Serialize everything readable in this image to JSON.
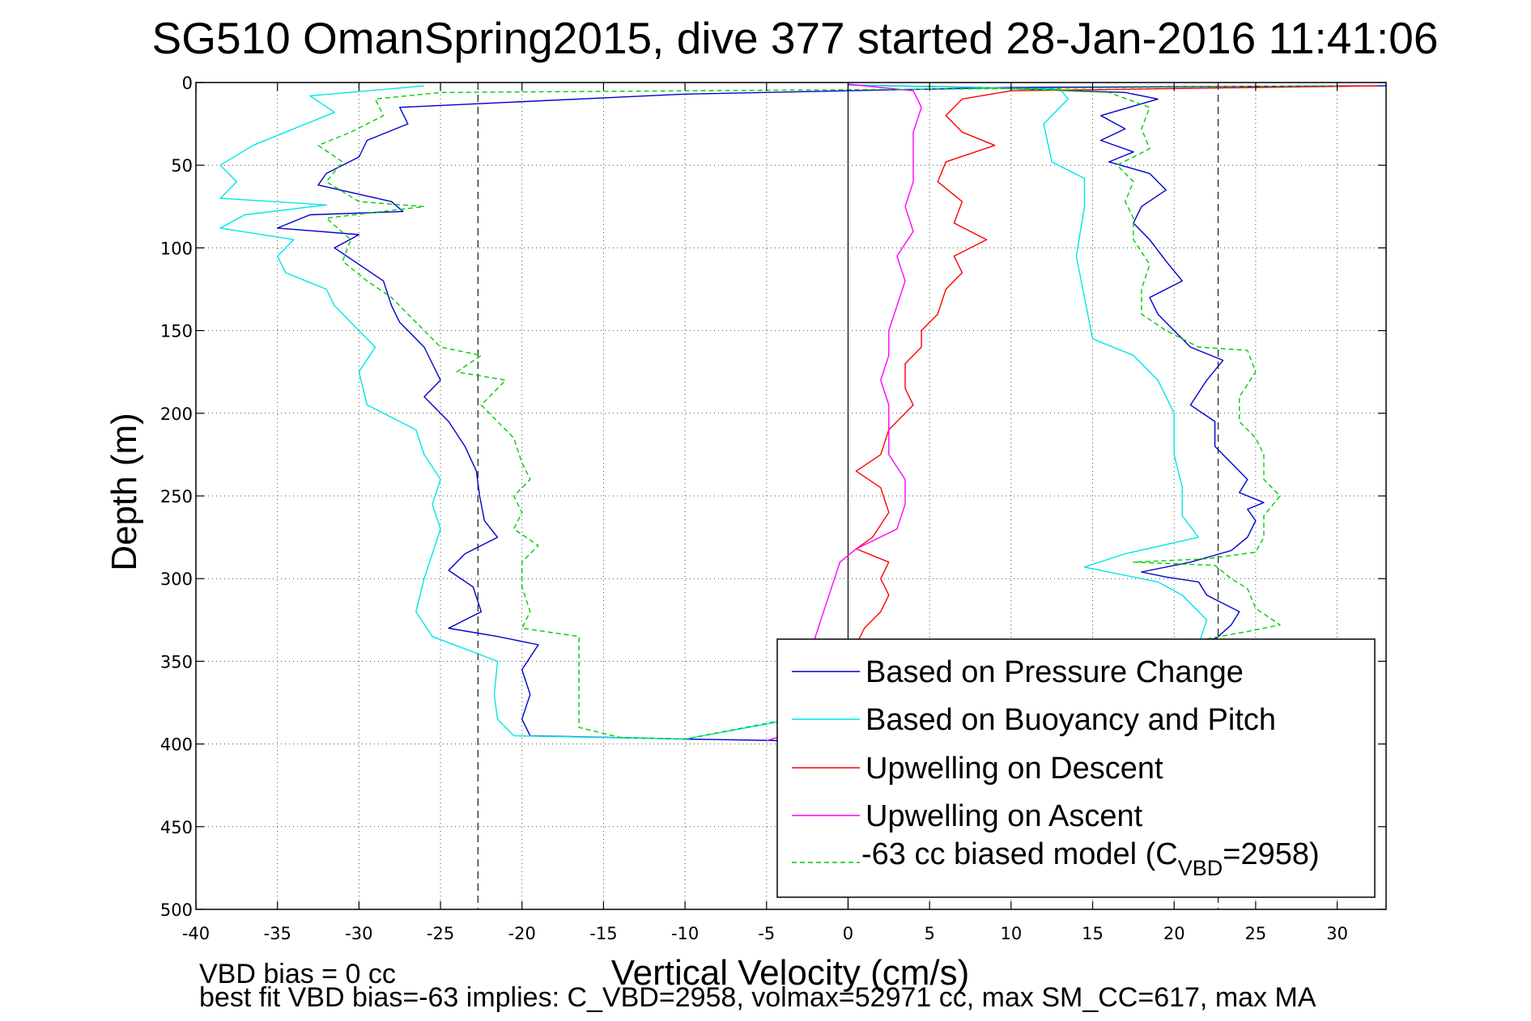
{
  "chart_data": {
    "type": "line",
    "title": "SG510 OmanSpring2015, dive 377 started 28-Jan-2016 11:41:06",
    "xlabel": "Vertical Velocity (cm/s)",
    "ylabel": "Depth (m)",
    "xlim": [
      -40,
      33
    ],
    "ylim": [
      0,
      500
    ],
    "y_reversed": true,
    "grid": true,
    "x_ticks": [
      "-40",
      "-35",
      "-30",
      "-25",
      "-20",
      "-15",
      "-10",
      "-5",
      "0",
      "5",
      "10",
      "15",
      "20",
      "25",
      "30"
    ],
    "y_ticks": [
      "0",
      "50",
      "100",
      "150",
      "200",
      "250",
      "300",
      "350",
      "400",
      "450",
      "500"
    ],
    "reference_lines": {
      "vertical_solid": [
        0
      ],
      "vertical_dashed": [
        -22.7,
        22.7
      ]
    },
    "legend_position": "lower-right",
    "series": [
      {
        "name": "Based on Pressure Change",
        "color": "#0000cc",
        "style": "solid",
        "points": [
          [
            33,
            2
          ],
          [
            10,
            3
          ],
          [
            -10,
            7
          ],
          [
            -27.5,
            15
          ],
          [
            -27,
            25
          ],
          [
            -29.5,
            35
          ],
          [
            -30,
            45
          ],
          [
            -32,
            55
          ],
          [
            -32.5,
            62
          ],
          [
            -28,
            72
          ],
          [
            -27.3,
            78
          ],
          [
            -33,
            80
          ],
          [
            -35,
            88
          ],
          [
            -30,
            92
          ],
          [
            -31.5,
            100
          ],
          [
            -30,
            110
          ],
          [
            -28.5,
            120
          ],
          [
            -28,
            135
          ],
          [
            -27.5,
            145
          ],
          [
            -26,
            160
          ],
          [
            -25.5,
            170
          ],
          [
            -25,
            180
          ],
          [
            -26,
            190
          ],
          [
            -24.5,
            205
          ],
          [
            -23.5,
            220
          ],
          [
            -22.8,
            235
          ],
          [
            -22.6,
            250
          ],
          [
            -22.3,
            265
          ],
          [
            -21.5,
            275
          ],
          [
            -23.5,
            285
          ],
          [
            -24.5,
            295
          ],
          [
            -23,
            305
          ],
          [
            -22.5,
            320
          ],
          [
            -24.5,
            330
          ],
          [
            -21.5,
            335
          ],
          [
            -19,
            340
          ],
          [
            -20,
            355
          ],
          [
            -19.5,
            370
          ],
          [
            -20,
            385
          ],
          [
            -19.5,
            395
          ],
          [
            -10,
            397
          ],
          [
            -4,
            398
          ],
          [
            22.6,
            336
          ],
          [
            23.5,
            328
          ],
          [
            24,
            320
          ],
          [
            22,
            310
          ],
          [
            21.5,
            302
          ],
          [
            19.5,
            299
          ],
          [
            18,
            296
          ],
          [
            21,
            290
          ],
          [
            23.5,
            283
          ],
          [
            24.5,
            275
          ],
          [
            25,
            265
          ],
          [
            24.5,
            258
          ],
          [
            25.5,
            254
          ],
          [
            24,
            248
          ],
          [
            24.5,
            240
          ],
          [
            23.5,
            230
          ],
          [
            22.5,
            220
          ],
          [
            22.5,
            205
          ],
          [
            21,
            195
          ],
          [
            22,
            180
          ],
          [
            23,
            168
          ],
          [
            21,
            160
          ],
          [
            20,
            150
          ],
          [
            19,
            140
          ],
          [
            18.5,
            130
          ],
          [
            20.5,
            120
          ],
          [
            19.5,
            108
          ],
          [
            18.5,
            95
          ],
          [
            17.5,
            85
          ],
          [
            18,
            75
          ],
          [
            19.5,
            65
          ],
          [
            18.5,
            55
          ],
          [
            16,
            48
          ],
          [
            17.5,
            42
          ],
          [
            15.5,
            35
          ],
          [
            17,
            28
          ],
          [
            15.5,
            20
          ],
          [
            19,
            10
          ],
          [
            17,
            6
          ],
          [
            8,
            3
          ],
          [
            0,
            1.5
          ]
        ]
      },
      {
        "name": "Based on Buoyancy and Pitch",
        "color": "#00e6e6",
        "style": "solid",
        "points": [
          [
            -26,
            2
          ],
          [
            -33,
            8
          ],
          [
            -31.5,
            18
          ],
          [
            -34,
            28
          ],
          [
            -36.5,
            38
          ],
          [
            -38.5,
            50
          ],
          [
            -37.5,
            60
          ],
          [
            -38.5,
            70
          ],
          [
            -32,
            74
          ],
          [
            -37,
            80
          ],
          [
            -38.5,
            88
          ],
          [
            -34,
            95
          ],
          [
            -35,
            105
          ],
          [
            -34.5,
            115
          ],
          [
            -32,
            125
          ],
          [
            -31.5,
            135
          ],
          [
            -30.5,
            145
          ],
          [
            -29,
            160
          ],
          [
            -30,
            175
          ],
          [
            -29.5,
            195
          ],
          [
            -26.5,
            210
          ],
          [
            -26,
            225
          ],
          [
            -25,
            240
          ],
          [
            -25.5,
            255
          ],
          [
            -25,
            270
          ],
          [
            -25.5,
            285
          ],
          [
            -26,
            300
          ],
          [
            -26.5,
            320
          ],
          [
            -25.5,
            335
          ],
          [
            -21.5,
            350
          ],
          [
            -21.7,
            370
          ],
          [
            -21.5,
            385
          ],
          [
            -20.5,
            395
          ],
          [
            -10,
            397
          ],
          [
            21.5,
            340
          ],
          [
            22,
            325
          ],
          [
            20.5,
            310
          ],
          [
            19,
            302
          ],
          [
            14.5,
            293
          ],
          [
            17,
            285
          ],
          [
            21.5,
            275
          ],
          [
            20.5,
            262
          ],
          [
            20.5,
            245
          ],
          [
            20,
            225
          ],
          [
            20,
            200
          ],
          [
            19,
            180
          ],
          [
            17.5,
            165
          ],
          [
            15,
            155
          ],
          [
            14.5,
            130
          ],
          [
            14,
            105
          ],
          [
            14.5,
            75
          ],
          [
            14.5,
            58
          ],
          [
            12.5,
            48
          ],
          [
            12,
            25
          ],
          [
            13.5,
            10
          ],
          [
            13,
            4
          ],
          [
            0,
            1.5
          ]
        ]
      },
      {
        "name": "Upwelling on Descent",
        "color": "#ff0000",
        "style": "solid",
        "points": [
          [
            32.5,
            2
          ],
          [
            10,
            5
          ],
          [
            7,
            10
          ],
          [
            6,
            20
          ],
          [
            7,
            30
          ],
          [
            9,
            38
          ],
          [
            6,
            48
          ],
          [
            5.5,
            60
          ],
          [
            7,
            72
          ],
          [
            6.5,
            85
          ],
          [
            8.5,
            95
          ],
          [
            6.5,
            105
          ],
          [
            7,
            115
          ],
          [
            6,
            125
          ],
          [
            5.5,
            140
          ],
          [
            4.5,
            150
          ],
          [
            4.5,
            160
          ],
          [
            3.5,
            170
          ],
          [
            3.5,
            185
          ],
          [
            4,
            195
          ],
          [
            2.5,
            210
          ],
          [
            2,
            225
          ],
          [
            0.5,
            235
          ],
          [
            2,
            245
          ],
          [
            2.5,
            260
          ],
          [
            1.5,
            275
          ],
          [
            0.5,
            282
          ],
          [
            2.5,
            290
          ],
          [
            2,
            300
          ],
          [
            2.5,
            310
          ],
          [
            2,
            320
          ],
          [
            1,
            330
          ],
          [
            0.5,
            340
          ]
        ]
      },
      {
        "name": "Upwelling on Ascent",
        "color": "#ff00ff",
        "style": "solid",
        "points": [
          [
            -5,
            398
          ],
          [
            -4,
            395
          ],
          [
            -0.5,
            290
          ],
          [
            0.5,
            282
          ],
          [
            3,
            270
          ],
          [
            3.5,
            255
          ],
          [
            3.5,
            240
          ],
          [
            2.5,
            225
          ],
          [
            2.5,
            210
          ],
          [
            2.5,
            195
          ],
          [
            2,
            180
          ],
          [
            2.5,
            165
          ],
          [
            2.5,
            150
          ],
          [
            3,
            135
          ],
          [
            3.5,
            120
          ],
          [
            3,
            105
          ],
          [
            4,
            90
          ],
          [
            3.5,
            75
          ],
          [
            4,
            60
          ],
          [
            4,
            45
          ],
          [
            4,
            30
          ],
          [
            4.5,
            15
          ],
          [
            4,
            5
          ],
          [
            0,
            1
          ]
        ]
      },
      {
        "name": "-63 cc biased model (C_VBD=2958)",
        "color": "#00cc00",
        "style": "dashed",
        "points": [
          [
            30,
            2
          ],
          [
            5,
            4
          ],
          [
            -25,
            6
          ],
          [
            -29,
            10
          ],
          [
            -28.5,
            20
          ],
          [
            -30.5,
            30
          ],
          [
            -32.5,
            38
          ],
          [
            -31,
            48
          ],
          [
            -32,
            60
          ],
          [
            -30,
            72
          ],
          [
            -26,
            75
          ],
          [
            -32,
            82
          ],
          [
            -30.5,
            95
          ],
          [
            -31,
            108
          ],
          [
            -29.5,
            120
          ],
          [
            -28,
            130
          ],
          [
            -26.5,
            145
          ],
          [
            -25,
            160
          ],
          [
            -22.5,
            165
          ],
          [
            -24,
            175
          ],
          [
            -21,
            180
          ],
          [
            -22.5,
            195
          ],
          [
            -21.5,
            205
          ],
          [
            -20.5,
            215
          ],
          [
            -20,
            230
          ],
          [
            -19.5,
            240
          ],
          [
            -20.5,
            250
          ],
          [
            -20,
            260
          ],
          [
            -20.5,
            270
          ],
          [
            -19,
            280
          ],
          [
            -20,
            290
          ],
          [
            -20,
            305
          ],
          [
            -19.5,
            320
          ],
          [
            -20,
            330
          ],
          [
            -16.5,
            335
          ],
          [
            -16.5,
            350
          ],
          [
            -16.5,
            375
          ],
          [
            -16.5,
            390
          ],
          [
            -14,
            396
          ],
          [
            -10,
            397
          ],
          [
            20,
            340
          ],
          [
            24.5,
            332
          ],
          [
            26.5,
            328
          ],
          [
            25,
            318
          ],
          [
            24.5,
            306
          ],
          [
            23.5,
            300
          ],
          [
            22.5,
            292
          ],
          [
            17.5,
            290
          ],
          [
            22,
            288
          ],
          [
            25,
            284
          ],
          [
            25.5,
            275
          ],
          [
            25.5,
            262
          ],
          [
            26.5,
            250
          ],
          [
            25.5,
            240
          ],
          [
            25.5,
            225
          ],
          [
            25,
            215
          ],
          [
            24,
            205
          ],
          [
            24,
            190
          ],
          [
            25,
            175
          ],
          [
            24.5,
            162
          ],
          [
            21.5,
            160
          ],
          [
            19.5,
            150
          ],
          [
            18,
            140
          ],
          [
            18,
            125
          ],
          [
            18.5,
            110
          ],
          [
            17.5,
            95
          ],
          [
            17.5,
            82
          ],
          [
            17,
            72
          ],
          [
            17.5,
            60
          ],
          [
            16.5,
            50
          ],
          [
            18.5,
            40
          ],
          [
            18,
            28
          ],
          [
            18.5,
            15
          ],
          [
            16,
            6
          ],
          [
            8,
            3
          ]
        ]
      }
    ],
    "legend": [
      "Based on Pressure Change",
      "Based on Buoyancy and Pitch",
      "Upwelling on Descent",
      "Upwelling on Ascent",
      "-63 cc biased model (C"
    ],
    "legend_sub": {
      "subscript": "VBD",
      "suffix": "=2958)"
    },
    "footer": {
      "line1": "VBD bias = 0 cc",
      "line2": "best fit VBD bias=-63 implies: C_VBD=2958, volmax=52971 cc, max SM_CC=617, max MA"
    }
  }
}
